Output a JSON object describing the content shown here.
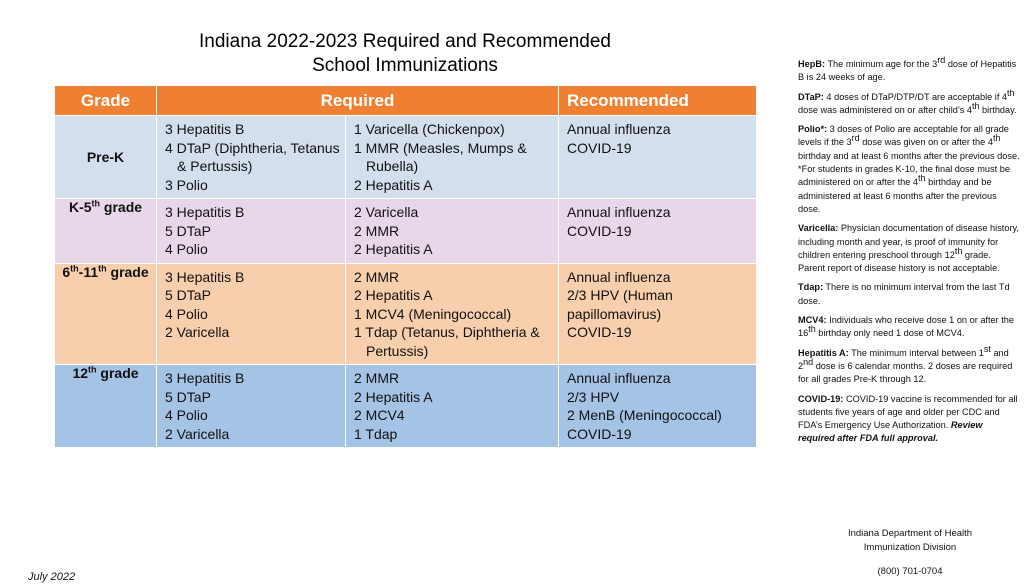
{
  "title": {
    "line1": "Indiana 2022-2023 Required and Recommended",
    "line2": "School Immunizations"
  },
  "colors": {
    "header_orange": "#ef7f31",
    "prek_row": "#d3dfed",
    "k5_row": "#e8d7e8",
    "g611_row": "#f8cfac",
    "g12_row": "#a5c3e5"
  },
  "table": {
    "headers": {
      "grade": "Grade",
      "required": "Required",
      "recommended": "Recommended"
    },
    "rows": {
      "prek": {
        "grade": "Pre-K",
        "req1": [
          "3 Hepatitis B",
          "4 DTaP (Diphtheria, Tetanus",
          "& Pertussis)",
          "3 Polio"
        ],
        "req2": [
          "1 Varicella (Chickenpox)",
          "1 MMR (Measles, Mumps &",
          "Rubella)",
          "2 Hepatitis A"
        ],
        "rec": [
          "Annual influenza",
          "COVID-19"
        ]
      },
      "k5": {
        "grade_base": "K-5",
        "grade_sup": "th",
        "grade_suffix": " grade",
        "req1": [
          "3 Hepatitis B",
          "5 DTaP",
          "4 Polio"
        ],
        "req2": [
          "2 Varicella",
          "2 MMR",
          "2 Hepatitis A"
        ],
        "rec": [
          "Annual influenza",
          "COVID-19"
        ]
      },
      "g611": {
        "grade_a": "6",
        "grade_a_sup": "th",
        "grade_b": "-11",
        "grade_b_sup": "th",
        "grade_suffix": " grade",
        "req1": [
          "3 Hepatitis B",
          "5 DTaP",
          "4 Polio",
          "2 Varicella"
        ],
        "req2": [
          "2 MMR",
          "2 Hepatitis A",
          "1 MCV4 (Meningococcal)",
          "1 Tdap (Tetanus, Diphtheria &",
          "Pertussis)"
        ],
        "rec": [
          "Annual influenza",
          "2/3 HPV (Human",
          "papillomavirus)",
          "COVID-19"
        ]
      },
      "g12": {
        "grade_base": "12",
        "grade_sup": "th",
        "grade_suffix": " grade",
        "req1": [
          "3 Hepatitis B",
          "5 DTaP",
          "4 Polio",
          "2 Varicella"
        ],
        "req2": [
          "2 MMR",
          "2 Hepatitis A",
          "2 MCV4",
          "1 Tdap"
        ],
        "rec": [
          "Annual influenza",
          "2/3 HPV",
          "2 MenB (Meningococcal)",
          "COVID-19"
        ]
      }
    }
  },
  "notes": {
    "hepb": {
      "label": "HepB:",
      "t1": " The minimum age for the 3",
      "sup": "rd",
      "t2": " dose of Hepatitis B is 24 weeks of age."
    },
    "dtap": {
      "label": "DTaP:",
      "t1": " 4 doses of DTaP/DTP/DT are acceptable if 4",
      "sup1": "th",
      "t2": " dose was administered on or after child’s 4",
      "sup2": "th",
      "t3": " birthday."
    },
    "polio": {
      "label": "Polio*:",
      "t1": " 3 doses of Polio are acceptable for all grade levels if the 3",
      "sup1": "rd",
      "t2": " dose was given on or after the 4",
      "sup2": "th",
      "t3": " birthday and at least 6 months after the previous dose."
    },
    "polio_star": {
      "t1": "*For students in grades K-10, the final dose must be administered on or after the 4",
      "sup": "th",
      "t2": " birthday and be administered at least 6 months after the previous dose."
    },
    "varicella": {
      "label": "Varicella:",
      "t1": " Physician documentation of disease history, including month and year, is proof of immunity for children entering preschool through 12",
      "sup": "th",
      "t2": " grade. Parent report of disease history is not acceptable."
    },
    "tdap": {
      "label": "Tdap:",
      "text": " There is no minimum interval from the last Td dose."
    },
    "mcv4": {
      "label": "MCV4:",
      "t1": " Individuals who receive dose 1 on or after the 16",
      "sup": "th",
      "t2": " birthday only need 1 dose of MCV4."
    },
    "hepa": {
      "label": "Hepatitis A:",
      "t1": " The minimum interval between 1",
      "sup1": "st",
      "t2": " and 2",
      "sup2": "nd",
      "t3": " dose is 6 calendar months. 2 doses are required for all grades Pre-K through 12."
    },
    "covid": {
      "label": "COVID-19:",
      "text": "  COVID-19 vaccine is recommended for all students five years of age and older per CDC and FDA’s Emergency Use Authorization.",
      "review": "Review required after FDA full approval."
    }
  },
  "footer": {
    "org_line1": "Indiana Department of Health",
    "org_line2": "Immunization Division",
    "phone": "(800) 701-0704",
    "date": "July 2022"
  }
}
